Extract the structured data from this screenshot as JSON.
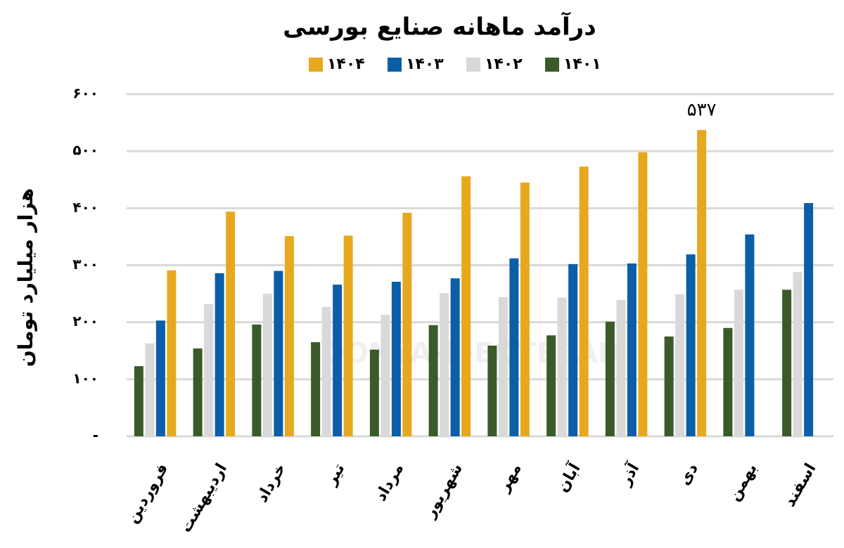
{
  "chart_data": {
    "type": "bar",
    "title": "درآمد ماهانه صنایع بورسی",
    "y_label": "هزار میلیارد تومان",
    "watermark": "DONYA-E-EQTESAD",
    "categories": [
      "فروردین",
      "اردیبهشت",
      "خرداد",
      "تیر",
      "مرداد",
      "شهریور",
      "مهر",
      "آبان",
      "آذر",
      "دی",
      "بهمن",
      "اسفند"
    ],
    "series": [
      {
        "name": "۱۴۰۱",
        "color": "#3b5a2a",
        "values": [
          123,
          154,
          196,
          165,
          152,
          195,
          159,
          177,
          201,
          175,
          190,
          257
        ]
      },
      {
        "name": "۱۴۰۲",
        "color": "#d9d9d9",
        "values": [
          163,
          232,
          250,
          227,
          213,
          251,
          244,
          243,
          239,
          249,
          257,
          288
        ]
      },
      {
        "name": "۱۴۰۳",
        "color": "#0b5ea8",
        "values": [
          203,
          286,
          290,
          266,
          271,
          277,
          312,
          302,
          303,
          319,
          354,
          409
        ]
      },
      {
        "name": "۱۴۰۴",
        "color": "#e6a91e",
        "values": [
          291,
          394,
          351,
          352,
          392,
          456,
          445,
          473,
          498,
          537,
          null,
          null
        ],
        "value_labels": [
          null,
          null,
          null,
          null,
          null,
          null,
          null,
          null,
          null,
          "۵۳۷",
          null,
          null
        ]
      }
    ],
    "ylim": [
      0,
      600
    ],
    "yticks": [
      {
        "value": 0,
        "label": "-"
      },
      {
        "value": 100,
        "label": "۱۰۰"
      },
      {
        "value": 200,
        "label": "۲۰۰"
      },
      {
        "value": 300,
        "label": "۳۰۰"
      },
      {
        "value": 400,
        "label": "۴۰۰"
      },
      {
        "value": 500,
        "label": "۵۰۰"
      },
      {
        "value": 600,
        "label": "۶۰۰"
      }
    ],
    "grid": true,
    "legend": "top"
  }
}
